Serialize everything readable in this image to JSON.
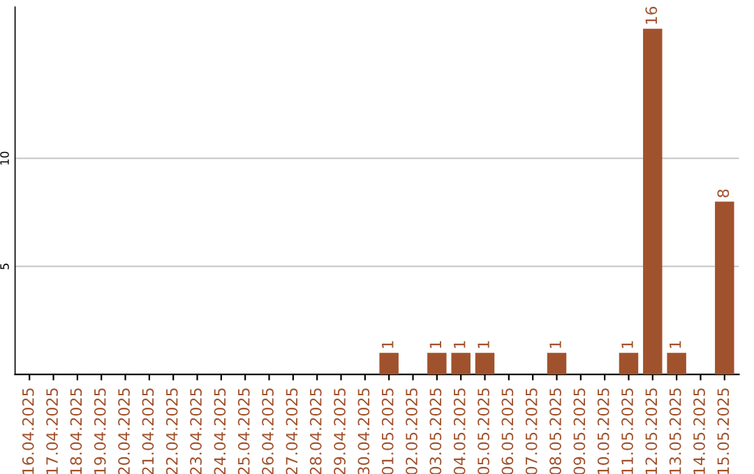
{
  "chart_data": {
    "type": "bar",
    "categories": [
      "16.04.2025",
      "17.04.2025",
      "18.04.2025",
      "19.04.2025",
      "20.04.2025",
      "21.04.2025",
      "22.04.2025",
      "23.04.2025",
      "24.04.2025",
      "25.04.2025",
      "26.04.2025",
      "27.04.2025",
      "28.04.2025",
      "29.04.2025",
      "30.04.2025",
      "01.05.2025",
      "02.05.2025",
      "03.05.2025",
      "04.05.2025",
      "05.05.2025",
      "06.05.2025",
      "07.05.2025",
      "08.05.2025",
      "09.05.2025",
      "10.05.2025",
      "11.05.2025",
      "12.05.2025",
      "13.05.2025",
      "14.05.2025",
      "15.05.2025"
    ],
    "values": [
      null,
      null,
      null,
      null,
      null,
      null,
      null,
      null,
      null,
      null,
      null,
      null,
      null,
      null,
      null,
      1,
      null,
      1,
      1,
      1,
      null,
      null,
      1,
      null,
      null,
      1,
      16,
      1,
      null,
      8
    ],
    "color": "#a0522d",
    "ylim": [
      0,
      17
    ],
    "yticks": [
      5,
      10
    ],
    "grid": "y",
    "data_labels": true
  }
}
